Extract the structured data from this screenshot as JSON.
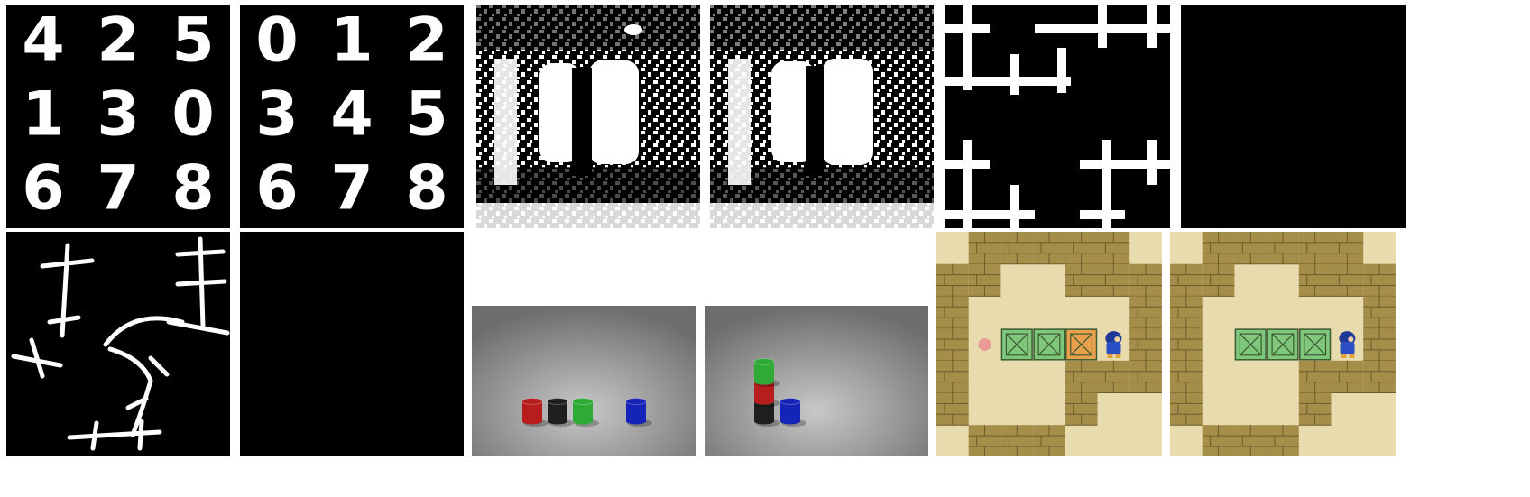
{
  "grid_a_digits": [
    "4",
    "2",
    "5",
    "1",
    "3",
    "0",
    "6",
    "7",
    "8"
  ],
  "grid_b_digits": [
    "0",
    "1",
    "2",
    "3",
    "4",
    "5",
    "6",
    "7",
    "8"
  ],
  "colors": {
    "background": "#ffffff",
    "panel": "#000000",
    "stroke": "#ffffff",
    "floor": "#a9a9a9",
    "red": "#b81d1d",
    "green": "#2eab37",
    "blue": "#1524b8",
    "cyl_black": "#1e1e1e",
    "sand": "#e8dcae",
    "brick": "#a58d4a",
    "box_green": "#7fc77a",
    "box_orange": "#e9a04d",
    "target": "#e89a94"
  },
  "scene_left": {
    "cylinders": [
      "red",
      "black",
      "green",
      "blue"
    ]
  },
  "scene_right": {
    "stack": [
      "green",
      "red",
      "black"
    ],
    "single": "blue"
  },
  "sokoban_left": {
    "boxes": [
      "green",
      "green",
      "orange"
    ],
    "target_visible": true
  },
  "sokoban_right": {
    "boxes": [
      "green",
      "green",
      "green"
    ],
    "target_visible": false
  }
}
